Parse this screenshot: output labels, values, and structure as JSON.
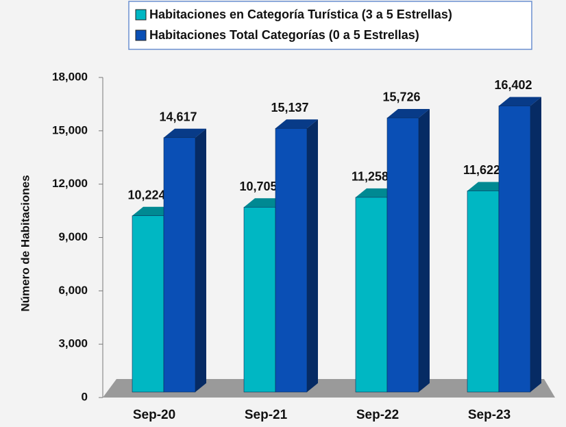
{
  "chart_data": {
    "type": "bar3d",
    "y_label": "Número de Habitaciones",
    "categories": [
      "Sep-20",
      "Sep-21",
      "Sep-22",
      "Sep-23"
    ],
    "series": [
      {
        "name": "Habitaciones en Categoría Turística (3 a 5 Estrellas)",
        "color": "#00b7c3",
        "values": [
          10224,
          10705,
          11258,
          11622
        ],
        "value_labels": [
          "10,224",
          "10,705",
          "11,258",
          "11,622"
        ]
      },
      {
        "name": "Habitaciones Total Categorías (0 a 5 Estrellas)",
        "color": "#0a4fb5",
        "values": [
          14617,
          15137,
          15726,
          16402
        ],
        "value_labels": [
          "14,617",
          "15,137",
          "15,726",
          "16,402"
        ]
      }
    ],
    "ylim": [
      0,
      18000
    ],
    "yticks": [
      0,
      {
        "value": 3000,
        "label": "3,000"
      },
      {
        "value": 6000,
        "label": "6,000"
      },
      {
        "value": 9000,
        "label": "9,000"
      },
      {
        "value": 12000,
        "label": "12,000"
      },
      {
        "value": 15000,
        "label": "15,000"
      },
      {
        "value": 18000,
        "label": "18,000"
      }
    ]
  }
}
